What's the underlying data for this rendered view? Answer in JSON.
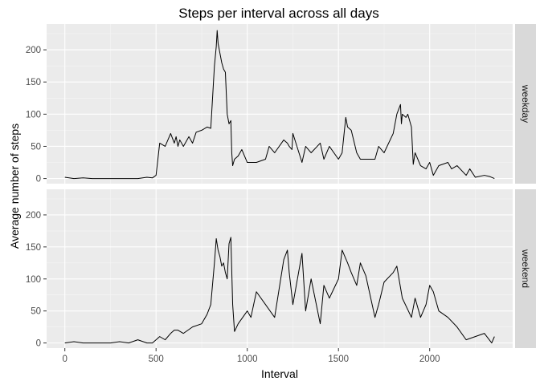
{
  "chart_data": {
    "type": "line",
    "title": "Steps per interval across all days",
    "xlabel": "Interval",
    "ylabel": "Average number of steps",
    "xlim": [
      -100,
      2455
    ],
    "ylim": [
      -8,
      240
    ],
    "x_ticks": [
      0,
      500,
      1000,
      1500,
      2000
    ],
    "y_ticks": [
      0,
      50,
      100,
      150,
      200
    ],
    "grid": true,
    "facet": "rows",
    "panels": [
      {
        "label": "weekday",
        "series": [
          {
            "x": [
              0,
              50,
              100,
              150,
              200,
              250,
              300,
              350,
              400,
              450,
              480,
              500,
              520,
              550,
              580,
              600,
              610,
              620,
              630,
              650,
              680,
              700,
              720,
              750,
              780,
              800,
              820,
              830,
              835,
              840,
              850,
              860,
              870,
              880,
              890,
              900,
              910,
              915,
              920,
              930,
              950,
              970,
              1000,
              1020,
              1050,
              1100,
              1120,
              1150,
              1200,
              1220,
              1230,
              1245,
              1250,
              1300,
              1320,
              1350,
              1400,
              1420,
              1450,
              1500,
              1520,
              1540,
              1550,
              1570,
              1600,
              1620,
              1650,
              1700,
              1720,
              1750,
              1800,
              1820,
              1840,
              1845,
              1850,
              1870,
              1880,
              1900,
              1910,
              1920,
              1950,
              1980,
              2000,
              2020,
              2050,
              2100,
              2120,
              2150,
              2200,
              2220,
              2250,
              2300,
              2330,
              2355
            ],
            "y": [
              2,
              0,
              1,
              0,
              0,
              0,
              0,
              0,
              0,
              2,
              1,
              5,
              55,
              50,
              70,
              55,
              65,
              50,
              60,
              50,
              65,
              55,
              72,
              75,
              80,
              78,
              175,
              205,
              230,
              210,
              195,
              180,
              170,
              165,
              100,
              85,
              90,
              40,
              20,
              30,
              35,
              45,
              25,
              25,
              25,
              30,
              50,
              40,
              60,
              55,
              50,
              45,
              70,
              25,
              50,
              40,
              55,
              30,
              50,
              30,
              40,
              95,
              80,
              75,
              40,
              30,
              30,
              30,
              50,
              40,
              70,
              100,
              115,
              85,
              100,
              95,
              100,
              80,
              22,
              40,
              20,
              15,
              25,
              5,
              20,
              25,
              15,
              20,
              5,
              15,
              2,
              5,
              3,
              0
            ]
          }
        ]
      },
      {
        "label": "weekend",
        "series": [
          {
            "x": [
              0,
              50,
              100,
              150,
              200,
              250,
              300,
              350,
              400,
              450,
              480,
              500,
              520,
              550,
              580,
              600,
              620,
              650,
              700,
              750,
              780,
              800,
              820,
              830,
              840,
              850,
              860,
              870,
              880,
              890,
              900,
              910,
              920,
              930,
              950,
              1000,
              1020,
              1050,
              1100,
              1150,
              1200,
              1220,
              1230,
              1250,
              1300,
              1320,
              1350,
              1400,
              1420,
              1450,
              1500,
              1520,
              1550,
              1570,
              1600,
              1620,
              1650,
              1700,
              1720,
              1750,
              1800,
              1820,
              1850,
              1900,
              1920,
              1950,
              1980,
              2000,
              2020,
              2050,
              2100,
              2150,
              2200,
              2250,
              2300,
              2340,
              2355
            ],
            "y": [
              0,
              2,
              0,
              0,
              0,
              0,
              2,
              0,
              5,
              0,
              0,
              5,
              10,
              5,
              15,
              20,
              20,
              15,
              25,
              30,
              45,
              60,
              125,
              163,
              145,
              135,
              120,
              125,
              110,
              100,
              155,
              165,
              60,
              18,
              30,
              50,
              40,
              80,
              60,
              40,
              130,
              145,
              110,
              60,
              140,
              50,
              100,
              30,
              90,
              70,
              100,
              145,
              125,
              110,
              90,
              125,
              105,
              40,
              60,
              95,
              110,
              120,
              70,
              40,
              70,
              40,
              60,
              90,
              80,
              50,
              40,
              25,
              5,
              10,
              15,
              0,
              10
            ]
          }
        ]
      }
    ]
  }
}
